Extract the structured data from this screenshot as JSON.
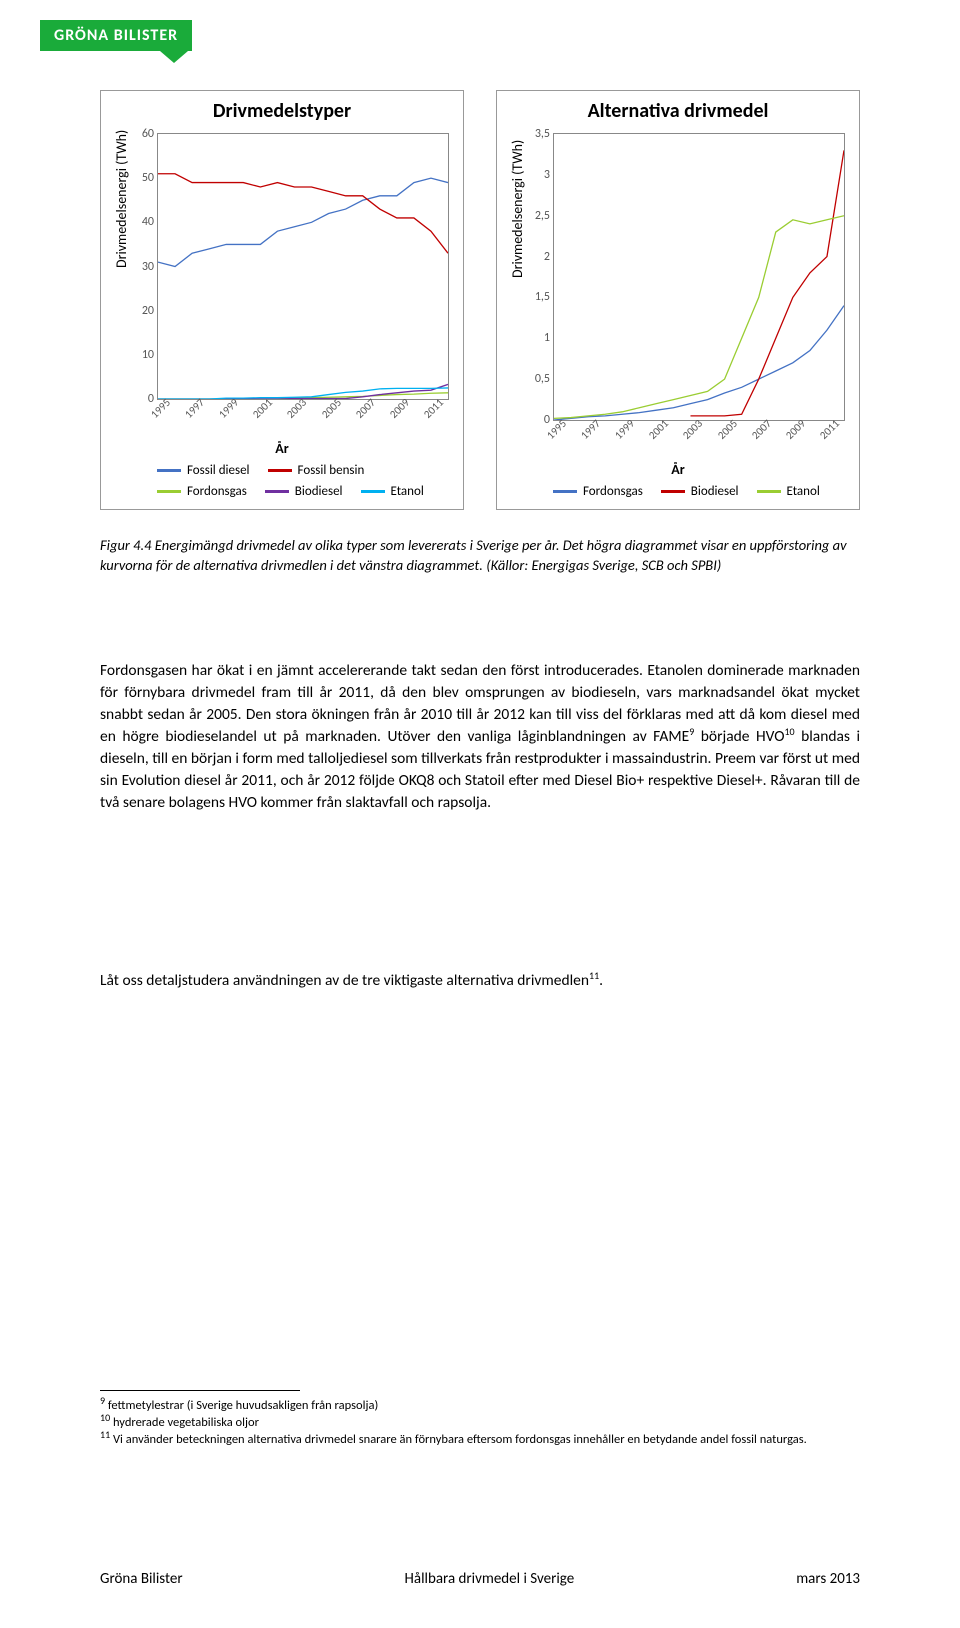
{
  "logo": "GRÖNA BILISTER",
  "chart1": {
    "type": "line",
    "title": "Drivmedelstyper",
    "ylabel": "Drivmedelsenergi (TWh)",
    "xlabel": "År",
    "ylim": [
      0,
      60
    ],
    "ytick_step": 10,
    "xticks": [
      "1995",
      "1997",
      "1999",
      "2001",
      "2003",
      "2005",
      "2007",
      "2009",
      "2011"
    ],
    "series": [
      {
        "name": "Fossil diesel",
        "color": "#4472c4",
        "values": [
          31,
          30,
          33,
          34,
          35,
          35,
          35,
          38,
          39,
          40,
          42,
          43,
          45,
          46,
          46,
          49,
          50,
          49
        ]
      },
      {
        "name": "Fossil bensin",
        "color": "#c00000",
        "values": [
          51,
          51,
          49,
          49,
          49,
          49,
          48,
          49,
          48,
          48,
          47,
          46,
          46,
          43,
          41,
          41,
          38,
          33
        ]
      },
      {
        "name": "Fordonsgas",
        "color": "#9acd32",
        "values": [
          0,
          0,
          0,
          0,
          0,
          0,
          0,
          0,
          0.3,
          0.3,
          0.4,
          0.5,
          0.6,
          0.8,
          1.0,
          1.1,
          1.3,
          1.4
        ]
      },
      {
        "name": "Biodiesel",
        "color": "#7030a0",
        "values": [
          0,
          0,
          0,
          0,
          0,
          0,
          0,
          0,
          0.1,
          0.1,
          0.1,
          0.1,
          0.5,
          1.0,
          1.4,
          1.8,
          2.0,
          3.3
        ]
      },
      {
        "name": "Etanol",
        "color": "#00b0f0",
        "values": [
          0,
          0,
          0,
          0,
          0.2,
          0.2,
          0.3,
          0.3,
          0.4,
          0.5,
          1.0,
          1.5,
          1.8,
          2.3,
          2.4,
          2.4,
          2.4,
          2.5
        ]
      }
    ]
  },
  "chart2": {
    "type": "line",
    "title": "Alternativa drivmedel",
    "ylabel": "Drivmedelsenergi (TWh)",
    "xlabel": "År",
    "ylim": [
      0,
      3.5
    ],
    "ytick_step": 0.5,
    "xticks": [
      "1995",
      "1997",
      "1999",
      "2001",
      "2003",
      "2005",
      "2007",
      "2009",
      "2011"
    ],
    "series": [
      {
        "name": "Fordonsgas",
        "color": "#4472c4",
        "values": [
          0,
          0.02,
          0.04,
          0.05,
          0.07,
          0.09,
          0.12,
          0.15,
          0.2,
          0.25,
          0.33,
          0.4,
          0.5,
          0.6,
          0.7,
          0.85,
          1.1,
          1.4
        ]
      },
      {
        "name": "Biodiesel",
        "color": "#c00000",
        "values": [
          null,
          null,
          null,
          null,
          null,
          null,
          null,
          null,
          0.05,
          0.05,
          0.05,
          0.07,
          0.5,
          1.0,
          1.5,
          1.8,
          2.0,
          3.3
        ]
      },
      {
        "name": "Etanol",
        "color": "#9acd32",
        "values": [
          0.02,
          0.03,
          0.05,
          0.07,
          0.1,
          0.15,
          0.2,
          0.25,
          0.3,
          0.35,
          0.5,
          1.0,
          1.5,
          2.3,
          2.45,
          2.4,
          2.45,
          2.5
        ]
      }
    ]
  },
  "caption": "Figur 4.4 Energimängd drivmedel av olika typer som levererats i Sverige per år. Det högra diagrammet visar en uppförstoring av kurvorna för de alternativa drivmedlen i det vänstra diagrammet. (Källor: Energigas Sverige, SCB och SPBI)",
  "body1_pre": "Fordonsgasen har ökat i en jämnt accelererande takt sedan den först introducerades. Etanolen dominerade marknaden för förnybara drivmedel fram till år 2011, då den blev omsprungen av biodieseln, vars marknadsandel ökat mycket snabbt sedan år 2005. Den stora ökningen från år 2010 till år 2012 kan till viss del förklaras med att då kom diesel med en högre biodieselandel ut på marknaden. Utöver den vanliga låginblandningen av FAME",
  "body1_mid": " började HVO",
  "body1_post": " blandas i dieseln, till en början i form med talloljediesel som tillverkats från restprodukter i massaindustrin. Preem var först ut med sin Evolution diesel år 2011, och år 2012 följde OKQ8 och Statoil efter med Diesel Bio+ respektive Diesel+. Råvaran till de två senare bolagens HVO kommer från slaktavfall och rapsolja.",
  "body2": "Låt oss detaljstudera användningen av de tre viktigaste alternativa drivmedlen",
  "footnotes": [
    {
      "n": "9",
      "t": "fettmetylestrar (i Sverige huvudsakligen från rapsolja)"
    },
    {
      "n": "10",
      "t": "hydrerade vegetabiliska oljor"
    },
    {
      "n": "11",
      "t": "Vi använder beteckningen alternativa drivmedel snarare än förnybara eftersom fordonsgas innehåller en betydande andel fossil naturgas."
    }
  ],
  "footer": {
    "left": "Gröna Bilister",
    "center": "Hållbara drivmedel i Sverige",
    "right": "mars 2013"
  },
  "decimal_sep": ","
}
